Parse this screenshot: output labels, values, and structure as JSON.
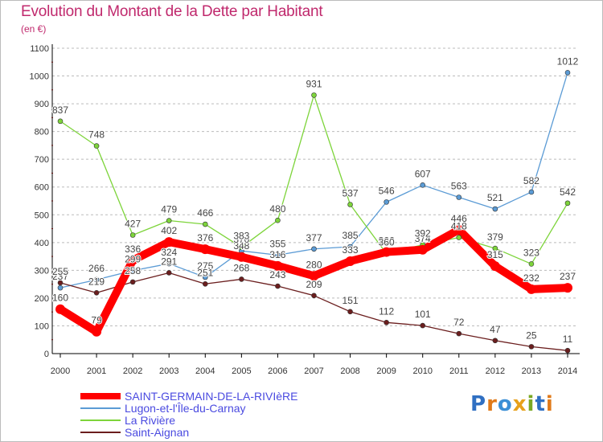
{
  "page": {
    "title": "Evolution du Montant de la Dette par Habitant",
    "unit": "(en €)",
    "brand": [
      "P",
      "r",
      "o",
      "x",
      "i",
      "t",
      "i"
    ],
    "brand_colors": [
      "#2f6fc2",
      "#e07a1a",
      "#3b8fd6",
      "#e7a11b",
      "#7aa823",
      "#2f6fc2",
      "#e07a1a"
    ]
  },
  "colors": {
    "title": "#c0296d",
    "legend_text": "#4a4ae0",
    "axis": "#000000",
    "grid": "#bbbbbb",
    "tick_mark": "#d21f1f"
  },
  "chart_data": {
    "type": "line",
    "title": "Evolution du Montant de la Dette par Habitant",
    "ylabel": "(en €)",
    "xlabel": "",
    "ylim": [
      0,
      1100
    ],
    "yticks": [
      0,
      100,
      200,
      300,
      400,
      500,
      600,
      700,
      800,
      900,
      1000,
      1100
    ],
    "grid": "horizontal dashed",
    "legend_position": "bottom-left",
    "x": [
      "2000",
      "2001",
      "2002",
      "2003",
      "2004",
      "2005",
      "2006",
      "2007",
      "2008",
      "2009",
      "2010",
      "2011",
      "2012",
      "2013",
      "2014"
    ],
    "series": [
      {
        "name": "SAINT-GERMAIN-DE-LA-RIVIèRE",
        "color": "#ff0000",
        "emphasis": "thick",
        "values": [
          160,
          79,
          336,
          402,
          376,
          348,
          316,
          280,
          333,
          366,
          374,
          446,
          315,
          232,
          237
        ]
      },
      {
        "name": "Lugon-et-l'Île-du-Carnay",
        "color": "#5b9bd5",
        "emphasis": "thin",
        "values": [
          237,
          266,
          299,
          324,
          275,
          370,
          355,
          377,
          385,
          546,
          607,
          563,
          521,
          582,
          1012
        ]
      },
      {
        "name": "La Rivière",
        "color": "#7dd43a",
        "emphasis": "thin",
        "values": [
          837,
          748,
          427,
          479,
          466,
          383,
          480,
          931,
          537,
          360,
          392,
          418,
          379,
          323,
          542
        ]
      },
      {
        "name": "Saint-Aignan",
        "color": "#6b1e1e",
        "emphasis": "thin",
        "values": [
          255,
          219,
          258,
          291,
          251,
          268,
          243,
          209,
          151,
          112,
          101,
          72,
          47,
          25,
          11
        ]
      }
    ]
  }
}
